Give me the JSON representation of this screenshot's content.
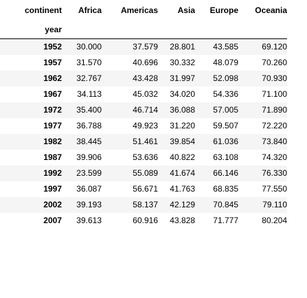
{
  "table": {
    "columns_name": "continent",
    "index_name": "year",
    "columns": [
      "Africa",
      "Americas",
      "Asia",
      "Europe",
      "Oceania"
    ],
    "rows": [
      {
        "year": "1952",
        "values": [
          "30.000",
          "37.579",
          "28.801",
          "43.585",
          "69.120"
        ]
      },
      {
        "year": "1957",
        "values": [
          "31.570",
          "40.696",
          "30.332",
          "48.079",
          "70.260"
        ]
      },
      {
        "year": "1962",
        "values": [
          "32.767",
          "43.428",
          "31.997",
          "52.098",
          "70.930"
        ]
      },
      {
        "year": "1967",
        "values": [
          "34.113",
          "45.032",
          "34.020",
          "54.336",
          "71.100"
        ]
      },
      {
        "year": "1972",
        "values": [
          "35.400",
          "46.714",
          "36.088",
          "57.005",
          "71.890"
        ]
      },
      {
        "year": "1977",
        "values": [
          "36.788",
          "49.923",
          "31.220",
          "59.507",
          "72.220"
        ]
      },
      {
        "year": "1982",
        "values": [
          "38.445",
          "51.461",
          "39.854",
          "61.036",
          "73.840"
        ]
      },
      {
        "year": "1987",
        "values": [
          "39.906",
          "53.636",
          "40.822",
          "63.108",
          "74.320"
        ]
      },
      {
        "year": "1992",
        "values": [
          "23.599",
          "55.089",
          "41.674",
          "66.146",
          "76.330"
        ]
      },
      {
        "year": "1997",
        "values": [
          "36.087",
          "56.671",
          "41.763",
          "68.835",
          "77.550"
        ]
      },
      {
        "year": "2002",
        "values": [
          "39.193",
          "58.137",
          "42.129",
          "70.845",
          "79.110"
        ]
      },
      {
        "year": "2007",
        "values": [
          "39.613",
          "60.916",
          "43.828",
          "71.777",
          "80.204"
        ]
      }
    ]
  }
}
